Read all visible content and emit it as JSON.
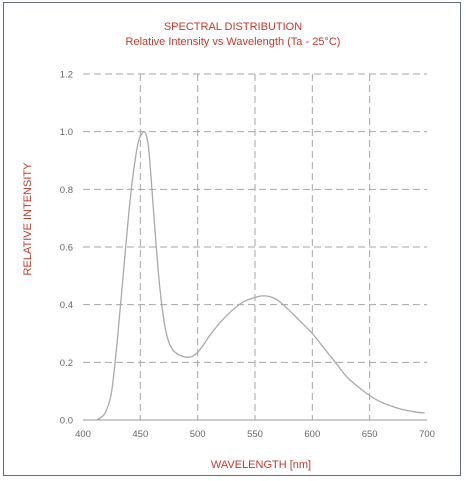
{
  "chart_data": {
    "type": "line",
    "title": "SPECTRAL DISTRIBUTION",
    "subtitle": "Relative Intensity vs Wavelength (Ta - 25°C)",
    "xlabel": "WAVELENGTH [nm]",
    "ylabel": "RELATIVE INTENSITY",
    "xlim": [
      400,
      700
    ],
    "ylim": [
      0,
      1.2
    ],
    "x_ticks": [
      "400",
      "450",
      "500",
      "550",
      "600",
      "650",
      "700"
    ],
    "y_ticks": [
      "0.0",
      "0.2",
      "0.4",
      "0.6",
      "0.8",
      "1.0",
      "1.2"
    ],
    "grid": true,
    "colors": {
      "title": "#c0392b",
      "curve": "#a9a9a9",
      "grid": "#a5a5a5",
      "frame": "#5f6f80"
    },
    "series": [
      {
        "x": [
          412,
          416,
          420,
          425,
          430,
          435,
          440,
          444,
          448,
          451,
          453,
          455,
          457,
          459,
          462,
          466,
          470,
          474,
          478,
          482,
          486,
          490,
          495,
          500,
          505,
          510,
          520,
          530,
          540,
          550,
          555,
          560,
          565,
          570,
          580,
          590,
          600,
          610,
          620,
          630,
          640,
          650,
          660,
          670,
          680,
          690,
          698
        ],
        "y": [
          0.0,
          0.01,
          0.03,
          0.1,
          0.28,
          0.5,
          0.72,
          0.86,
          0.96,
          0.99,
          1.0,
          0.99,
          0.95,
          0.86,
          0.7,
          0.5,
          0.36,
          0.28,
          0.245,
          0.23,
          0.222,
          0.218,
          0.22,
          0.235,
          0.26,
          0.29,
          0.34,
          0.38,
          0.41,
          0.425,
          0.43,
          0.43,
          0.425,
          0.415,
          0.38,
          0.34,
          0.3,
          0.25,
          0.2,
          0.15,
          0.115,
          0.085,
          0.062,
          0.047,
          0.035,
          0.028,
          0.024
        ]
      }
    ]
  }
}
